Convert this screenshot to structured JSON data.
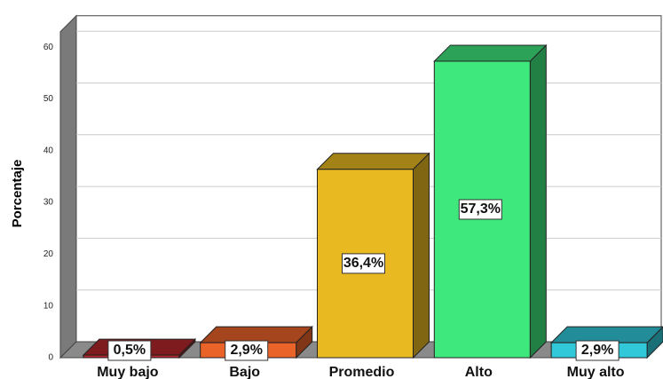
{
  "chart_data": {
    "type": "bar3d",
    "ylabel": "Porcentaje",
    "categories": [
      "Muy bajo",
      "Bajo",
      "Promedio",
      "Alto",
      "Muy alto"
    ],
    "values": [
      0.5,
      2.9,
      36.4,
      57.3,
      2.9
    ],
    "value_labels": [
      "0,5%",
      "2,9%",
      "36,4%",
      "57,3%",
      "2,9%"
    ],
    "colors": [
      "#b3272d",
      "#ea6329",
      "#e9b922",
      "#3ee87c",
      "#31c9d9"
    ],
    "ylim": [
      0,
      63
    ],
    "yticks": [
      0,
      10,
      20,
      30,
      40,
      50,
      60
    ],
    "grid": true
  }
}
